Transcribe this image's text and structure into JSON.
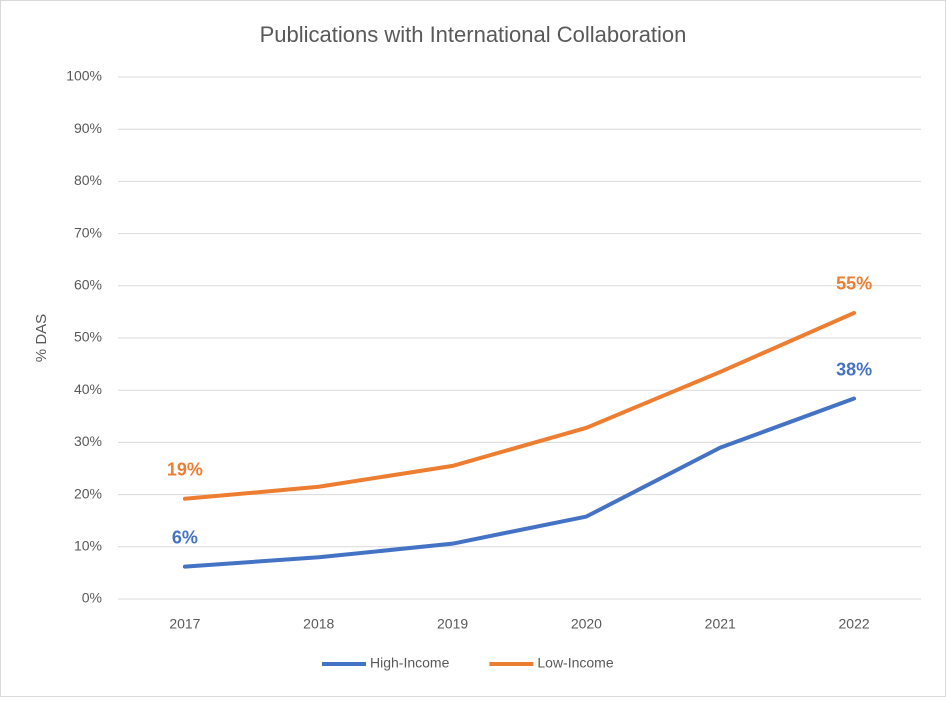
{
  "chart_data": {
    "type": "line",
    "title": "Publications with International Collaboration",
    "y_label": "% DAS",
    "categories": [
      "2017",
      "2018",
      "2019",
      "2020",
      "2021",
      "2022"
    ],
    "series": [
      {
        "name": "High-Income",
        "color": "#4472c4",
        "values": [
          6.2,
          8,
          10.6,
          15.8,
          29,
          38.4
        ],
        "value_labels": [
          "6%",
          null,
          null,
          null,
          null,
          "38%"
        ]
      },
      {
        "name": "Low-Income",
        "color": "#ed7d31",
        "values": [
          19.2,
          21.5,
          25.5,
          32.8,
          43.5,
          54.8
        ],
        "value_labels": [
          "19%",
          null,
          null,
          null,
          null,
          "55%"
        ]
      }
    ],
    "ylim": [
      0,
      100
    ],
    "yticks": [
      {
        "value": 0,
        "label": "0%"
      },
      {
        "value": 10,
        "label": "10%"
      },
      {
        "value": 20,
        "label": "20%"
      },
      {
        "value": 30,
        "label": "30%"
      },
      {
        "value": 40,
        "label": "40%"
      },
      {
        "value": 50,
        "label": "50%"
      },
      {
        "value": 60,
        "label": "60%"
      },
      {
        "value": 70,
        "label": "70%"
      },
      {
        "value": 80,
        "label": "80%"
      },
      {
        "value": 90,
        "label": "90%"
      },
      {
        "value": 100,
        "label": "100%"
      }
    ],
    "grid": true,
    "legend": "bottom"
  }
}
